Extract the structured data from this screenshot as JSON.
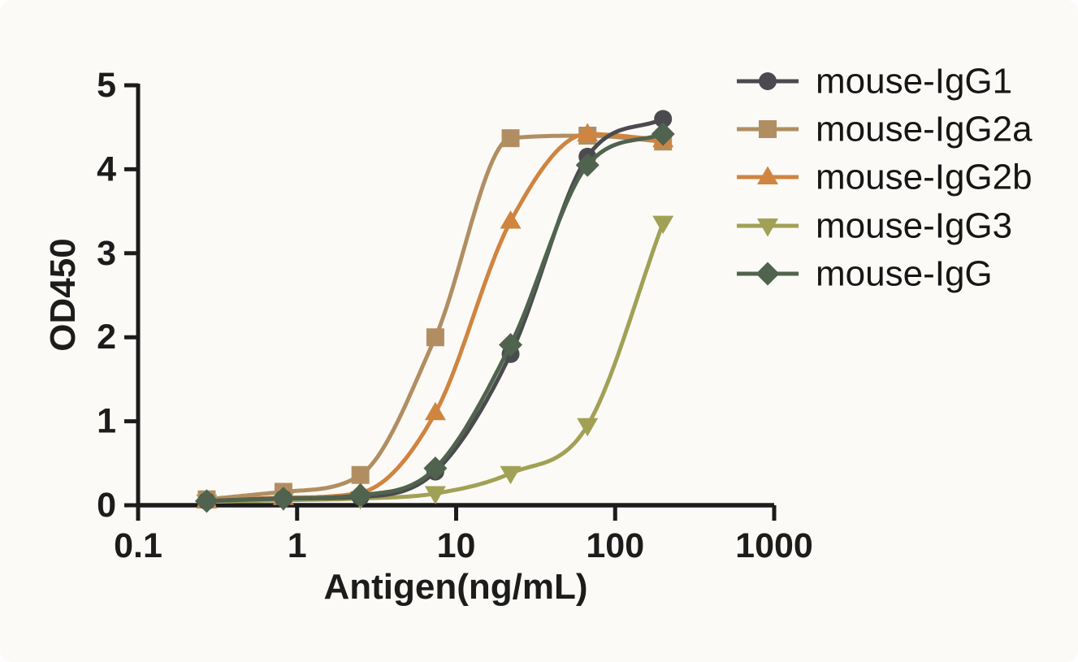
{
  "chart_data": {
    "type": "line",
    "xlabel": "Antigen(ng/mL)",
    "ylabel": "OD450",
    "x_scale": "log10",
    "xlim": [
      0.1,
      1000
    ],
    "ylim": [
      0,
      5
    ],
    "x_ticks": [
      0.1,
      1,
      10,
      100,
      1000
    ],
    "x_tick_labels": [
      "0.1",
      "1",
      "10",
      "100",
      "1000"
    ],
    "y_ticks": [
      0,
      1,
      2,
      3,
      4,
      5
    ],
    "y_tick_labels": [
      "0",
      "1",
      "2",
      "3",
      "4",
      "5"
    ],
    "grid": false,
    "legend_position": "top-right",
    "axis_color": "#1c1c1c",
    "background": "#fbfaf6",
    "x": [
      0.27,
      0.82,
      2.5,
      7.4,
      22,
      67,
      200
    ],
    "series": [
      {
        "name": "mouse-IgG1",
        "marker": "circle",
        "color": "#4b4b4f",
        "values": [
          0.05,
          0.08,
          0.1,
          0.4,
          1.8,
          4.15,
          4.6
        ]
      },
      {
        "name": "mouse-IgG2a",
        "marker": "square",
        "color": "#b18e62",
        "values": [
          0.07,
          0.16,
          0.36,
          2.0,
          4.37,
          4.4,
          4.33
        ]
      },
      {
        "name": "mouse-IgG2b",
        "marker": "triangle-up",
        "color": "#cf8440",
        "values": [
          0.05,
          0.09,
          0.15,
          1.1,
          3.38,
          4.42,
          4.35
        ]
      },
      {
        "name": "mouse-IgG3",
        "marker": "triangle-down",
        "color": "#a1a156",
        "values": [
          0.04,
          0.06,
          0.08,
          0.14,
          0.38,
          0.95,
          3.36
        ]
      },
      {
        "name": "mouse-IgG",
        "marker": "diamond",
        "color": "#50634e",
        "values": [
          0.05,
          0.08,
          0.12,
          0.44,
          1.91,
          4.05,
          4.42
        ]
      }
    ]
  }
}
